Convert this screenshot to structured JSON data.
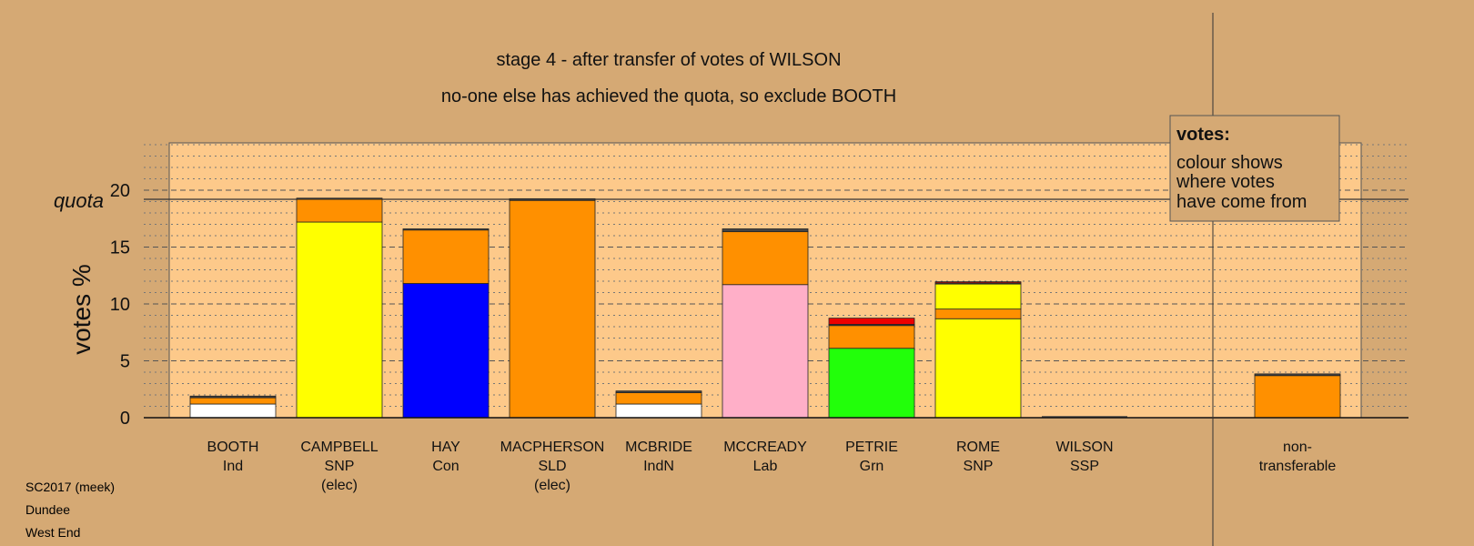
{
  "chart_data": {
    "type": "bar",
    "title": "stage 4 - after transfer of votes of WILSON",
    "subtitle": "no-one else has achieved the quota, so exclude BOOTH",
    "ylabel": "votes %",
    "quota_label": "quota",
    "quota": 19.2,
    "ylim": [
      0,
      24
    ],
    "yticks": [
      0,
      5,
      10,
      15,
      20
    ],
    "legend": {
      "title": "votes:",
      "lines": [
        "colour shows",
        "where votes",
        "have come from"
      ],
      "placement": "top-right"
    },
    "colors": {
      "background": "#d5a974",
      "plot_area": "#fdc98a",
      "ind": "#ffffff",
      "snp": "#ffff00",
      "con": "#0000ff",
      "transfer": "#ff9000",
      "lab": "#ffafc8",
      "grn": "#22ff0a",
      "ssp": "#ee0000",
      "indn": "#ffffff",
      "other": "#444444"
    },
    "candidates": [
      {
        "name": "BOOTH",
        "party": "Ind",
        "note": "",
        "segments": [
          {
            "source": "ind",
            "value": 1.2
          },
          {
            "source": "transfer",
            "value": 0.55
          },
          {
            "source": "other",
            "value": 0.15
          }
        ]
      },
      {
        "name": "CAMPBELL",
        "party": "SNP",
        "note": "(elec)",
        "segments": [
          {
            "source": "snp",
            "value": 17.2
          },
          {
            "source": "transfer",
            "value": 2.0
          },
          {
            "source": "other",
            "value": 0.1
          }
        ]
      },
      {
        "name": "HAY",
        "party": "Con",
        "note": "",
        "segments": [
          {
            "source": "con",
            "value": 11.8
          },
          {
            "source": "transfer",
            "value": 4.7
          },
          {
            "source": "other",
            "value": 0.1
          }
        ]
      },
      {
        "name": "MACPHERSON",
        "party": "SLD",
        "note": "(elec)",
        "segments": [
          {
            "source": "transfer",
            "value": 19.1
          },
          {
            "source": "other",
            "value": 0.15
          }
        ]
      },
      {
        "name": "MCBRIDE",
        "party": "IndN",
        "note": "",
        "segments": [
          {
            "source": "indn",
            "value": 1.2
          },
          {
            "source": "transfer",
            "value": 1.0
          },
          {
            "source": "other",
            "value": 0.15
          }
        ]
      },
      {
        "name": "MCCREADY",
        "party": "Lab",
        "note": "",
        "segments": [
          {
            "source": "lab",
            "value": 11.7
          },
          {
            "source": "transfer",
            "value": 4.65
          },
          {
            "source": "other",
            "value": 0.25
          }
        ]
      },
      {
        "name": "PETRIE",
        "party": "Grn",
        "note": "",
        "segments": [
          {
            "source": "grn",
            "value": 6.1
          },
          {
            "source": "transfer",
            "value": 2.0
          },
          {
            "source": "other",
            "value": 0.1
          },
          {
            "source": "ssp",
            "value": 0.55
          }
        ]
      },
      {
        "name": "ROME",
        "party": "SNP",
        "note": "",
        "segments": [
          {
            "source": "snp",
            "value": 8.7
          },
          {
            "source": "transfer",
            "value": 0.85
          },
          {
            "source": "snp",
            "value": 2.2
          },
          {
            "source": "other",
            "value": 0.1
          },
          {
            "source": "ssp",
            "value": 0.1
          }
        ]
      },
      {
        "name": "WILSON",
        "party": "SSP",
        "note": "",
        "segments": []
      }
    ],
    "nontransferable": {
      "label_line1": "non-",
      "label_line2": "transferable",
      "segments": [
        {
          "source": "transfer",
          "value": 3.7
        },
        {
          "source": "other",
          "value": 0.15
        }
      ]
    }
  },
  "footer": {
    "line1": "SC2017 (meek)",
    "line2": "Dundee",
    "line3": "West End"
  }
}
